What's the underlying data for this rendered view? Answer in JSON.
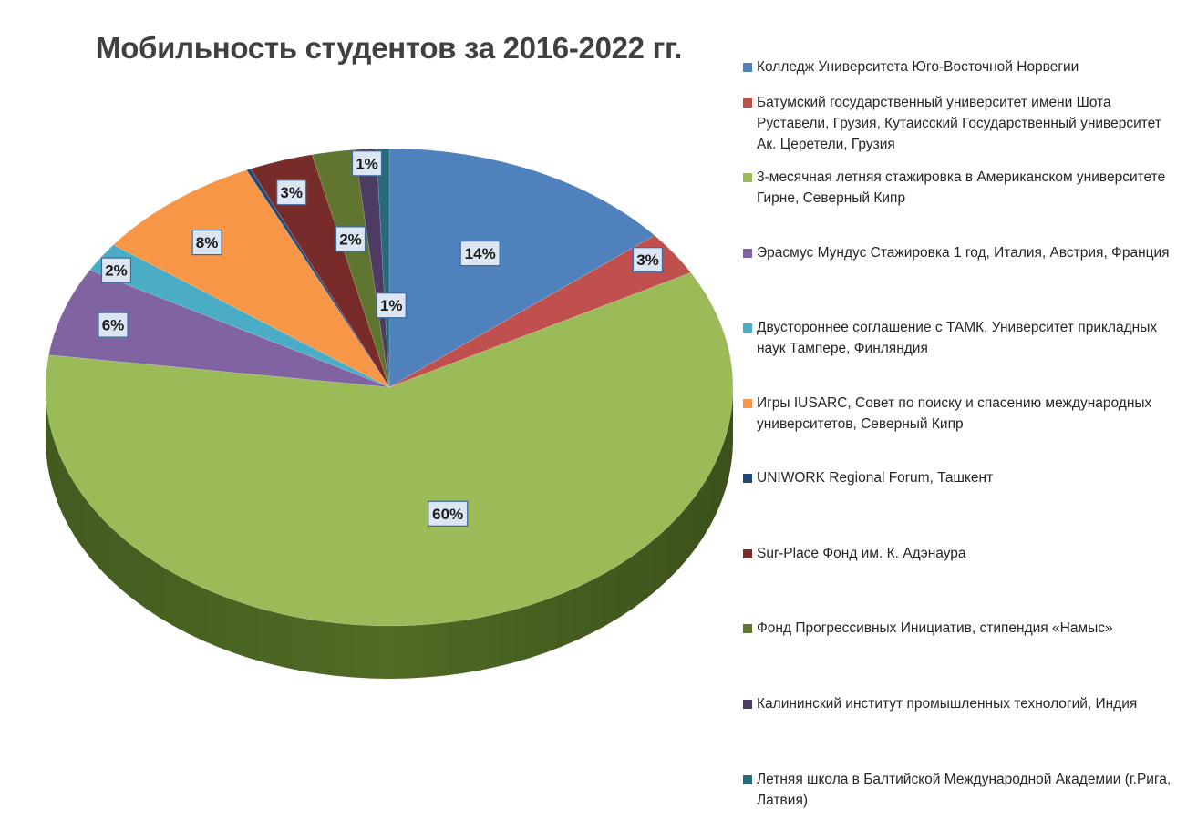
{
  "chart_data": {
    "type": "pie",
    "title": "Мобильность студентов за 2016-2022 гг.",
    "legend_position": "right",
    "slices": [
      {
        "label": "Колледж Университета Юго-Восточной Норвегии",
        "value": 14,
        "display": "14%",
        "color": "#4f81bd",
        "dark": "#2c4b73"
      },
      {
        "label": "Батумский государственный университет имени Шота Руставели, Грузия, Кутаисский Государственный университет Ак. Церетели, Грузия",
        "value": 3,
        "display": "3%",
        "color": "#c0504d",
        "dark": "#7a2e2c"
      },
      {
        "label": "3-месячная летняя стажировка в Американском университете Гирне, Северный Кипр",
        "value": 60,
        "display": "60%",
        "color": "#9bbb59",
        "dark": "#4f6b24"
      },
      {
        "label": "Эрасмус Мундус Стажировка 1 год, Италия, Австрия, Франция",
        "value": 6,
        "display": "6%",
        "color": "#8064a2",
        "dark": "#4b3763"
      },
      {
        "label": "Двустороннее соглашение с ТАМК, Университет прикладных наук Тампере, Финляндия",
        "value": 2,
        "display": "2%",
        "color": "#4bacc6",
        "dark": "#23687a"
      },
      {
        "label": "Игры IUSARC, Совет по поиску и спасению международных университетов, Северный Кипр",
        "value": 8,
        "display": "8%",
        "color": "#f79646",
        "dark": "#a8581a"
      },
      {
        "label": "UNIWORK Regional Forum, Ташкент",
        "value": 0.2,
        "display": "",
        "color": "#1f497d",
        "dark": "#0f2540"
      },
      {
        "label": "Sur-Place Фонд им. К. Адэнаура",
        "value": 3,
        "display": "3%",
        "color": "#772c2a",
        "dark": "#3f1514"
      },
      {
        "label": "Фонд Прогрессивных Инициатив, стипендия «Намыс»",
        "value": 2,
        "display": "2%",
        "color": "#5f7530",
        "dark": "#33401a"
      },
      {
        "label": "Калининский институт промышленных технологий, Индия",
        "value": 1,
        "display": "1%",
        "color": "#4d3b62",
        "dark": "#271e33"
      },
      {
        "label": "Летняя школа в Балтийской Международной Академии (г.Рига, Латвия)",
        "value": 0.6,
        "display": "1%",
        "color": "#276a7c",
        "dark": "#133640"
      }
    ]
  }
}
